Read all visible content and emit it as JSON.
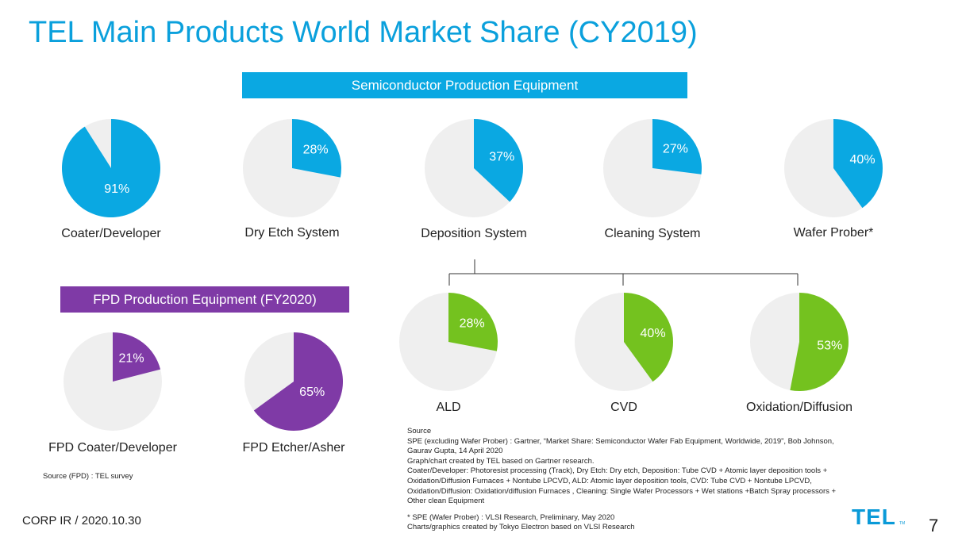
{
  "title": "TEL Main Products World Market Share (CY2019)",
  "banners": {
    "spe": "Semiconductor Production Equipment",
    "fpd": "FPD Production Equipment (FY2020)"
  },
  "colors": {
    "spe": "#0aa8e2",
    "fpd": "#7f3aa6",
    "sub": "#74c21f",
    "rest": "#efefef",
    "title": "#0aa0dc"
  },
  "chart_data": [
    {
      "type": "pie",
      "group": "spe",
      "label": "Coater/Developer",
      "value": 91,
      "value_label": "91%"
    },
    {
      "type": "pie",
      "group": "spe",
      "label": "Dry Etch System",
      "value": 28,
      "value_label": "28%"
    },
    {
      "type": "pie",
      "group": "spe",
      "label": "Deposition System",
      "value": 37,
      "value_label": "37%"
    },
    {
      "type": "pie",
      "group": "spe",
      "label": "Cleaning System",
      "value": 27,
      "value_label": "27%"
    },
    {
      "type": "pie",
      "group": "spe",
      "label": "Wafer Prober*",
      "value": 40,
      "value_label": "40%"
    },
    {
      "type": "pie",
      "group": "sub",
      "label": "ALD",
      "value": 28,
      "value_label": "28%"
    },
    {
      "type": "pie",
      "group": "sub",
      "label": "CVD",
      "value": 40,
      "value_label": "40%"
    },
    {
      "type": "pie",
      "group": "sub",
      "label": "Oxidation/Diffusion",
      "value": 53,
      "value_label": "53%"
    },
    {
      "type": "pie",
      "group": "fpd",
      "label": "FPD Coater/Developer",
      "value": 21,
      "value_label": "21%"
    },
    {
      "type": "pie",
      "group": "fpd",
      "label": "FPD Etcher/Asher",
      "value": 65,
      "value_label": "65%"
    }
  ],
  "source_fpd": "Source (FPD) : TEL survey",
  "source_lines": [
    "Source",
    "SPE (excluding Wafer Prober) : Gartner, “Market Share: Semiconductor Wafer Fab Equipment, Worldwide, 2019”, Bob Johnson,",
    "Gaurav Gupta, 14 April 2020",
    "Graph/chart created by TEL based on Gartner research.",
    "Coater/Developer: Photoresist processing (Track), Dry Etch: Dry etch, Deposition: Tube CVD + Atomic layer deposition tools +",
    "Oxidation/Diffusion Furnaces + Nontube LPCVD, ALD: Atomic layer deposition tools, CVD: Tube CVD + Nontube LPCVD,",
    "Oxidation/Diffusion: Oxidation/diffusion Furnaces , Cleaning: Single Wafer Processors + Wet stations +Batch Spray processors +",
    "Other clean Equipment",
    "",
    "* SPE (Wafer Prober) : VLSI Research, Preliminary, May 2020",
    "Charts/graphics created by Tokyo Electron based on VLSI Research"
  ],
  "footer": {
    "corp": "CORP IR / 2020.10.30",
    "page": "7",
    "logo": "TEL"
  }
}
